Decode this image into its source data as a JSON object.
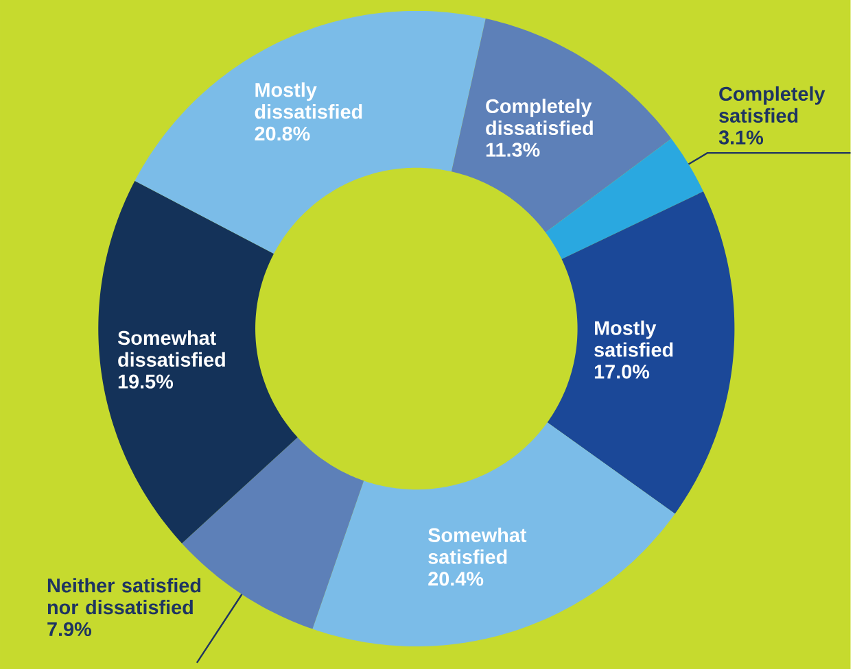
{
  "chart_data": {
    "type": "donut",
    "categories": [
      "Mostly dissatisfied",
      "Completely dissatisfied",
      "Completely satisfied",
      "Mostly satisfied",
      "Somewhat satisfied",
      "Neither satisfied nor dissatisfied",
      "Somewhat dissatisfied"
    ],
    "values": [
      20.8,
      11.3,
      3.1,
      17.0,
      20.4,
      7.9,
      19.5
    ],
    "value_labels": [
      "20.8%",
      "11.3%",
      "3.1%",
      "17.0%",
      "20.4%",
      "7.9%",
      "19.5%"
    ],
    "colors": [
      "#7bbce8",
      "#5d80b8",
      "#2aa8e0",
      "#1b4898",
      "#7bbce8",
      "#5d80b8",
      "#143259"
    ]
  }
}
